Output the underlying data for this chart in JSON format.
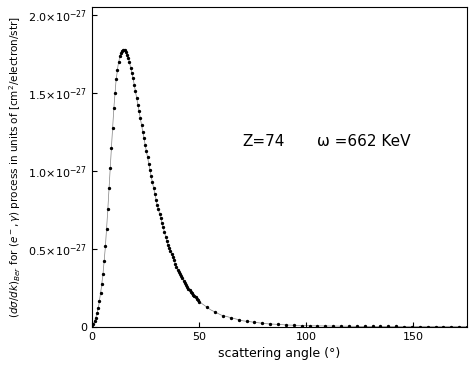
{
  "title": "",
  "xlabel": "scattering angle (°)",
  "annotation1": "Z=74",
  "annotation2": "ω =662 KeV",
  "xlim": [
    0,
    175
  ],
  "ylim": [
    0,
    2.05e-27
  ],
  "yticks": [
    0,
    5e-28,
    1e-27,
    1.5e-27,
    2e-27
  ],
  "xticks": [
    0,
    50,
    100,
    150
  ],
  "ref_x": [
    0,
    1,
    2,
    3,
    4,
    5,
    6,
    7,
    8,
    9,
    10,
    11,
    12,
    13,
    14,
    15,
    17,
    19,
    21,
    24,
    27,
    30,
    35,
    40,
    45,
    50,
    55,
    60,
    70,
    80,
    90,
    100,
    120,
    150,
    175
  ],
  "ref_y": [
    0.0,
    0.03,
    0.07,
    0.13,
    0.22,
    0.33,
    0.48,
    0.68,
    0.92,
    1.15,
    1.38,
    1.56,
    1.67,
    1.74,
    1.77,
    1.78,
    1.72,
    1.6,
    1.45,
    1.22,
    1.0,
    0.8,
    0.54,
    0.36,
    0.24,
    0.16,
    0.11,
    0.075,
    0.038,
    0.02,
    0.011,
    0.006,
    0.002,
    0.0005,
    0.0002
  ],
  "scale": 1e-27,
  "dot_color": "black",
  "bg_color": "white",
  "font_size": 9,
  "annot_fontsize": 11,
  "ylabel_fontsize": 7.5,
  "tick_labelsize": 8
}
